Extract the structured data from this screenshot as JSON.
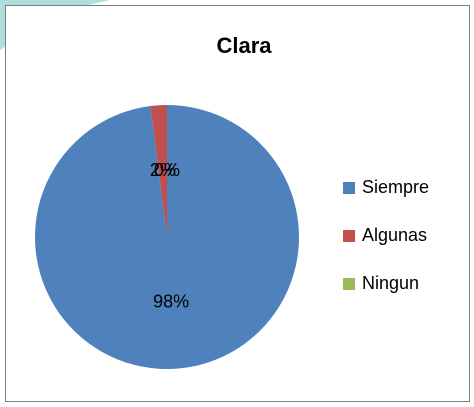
{
  "chart_data": {
    "type": "pie",
    "title": "Clara",
    "categories": [
      "Siempre",
      "Algunas",
      "Ningun"
    ],
    "values": [
      98,
      2,
      0
    ],
    "value_labels": [
      "98%",
      "2%",
      "0%"
    ],
    "colors": [
      "#4f81bd",
      "#c0504d",
      "#9bbb59"
    ],
    "legend": "right"
  }
}
